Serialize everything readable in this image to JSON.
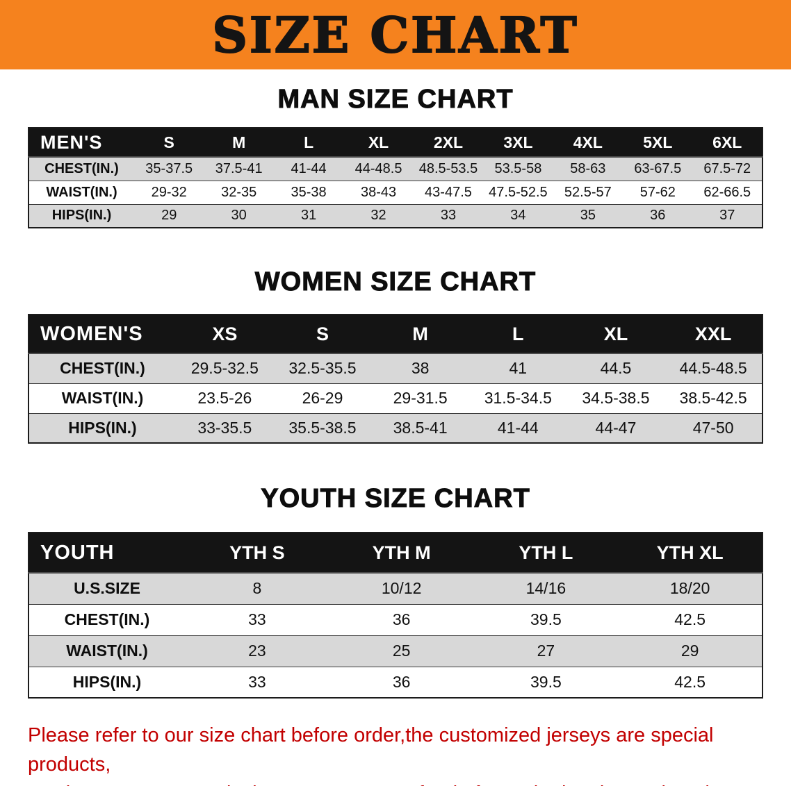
{
  "banner": {
    "title": "SIZE CHART"
  },
  "colors": {
    "banner_bg": "#F5821E",
    "table_header_bg": "#141414",
    "row_alt_bg": "#D8D8D8",
    "note_text": "#C20000"
  },
  "men": {
    "heading": "MAN SIZE CHART",
    "header": {
      "label": "MEN'S",
      "sizes": [
        "S",
        "M",
        "L",
        "XL",
        "2XL",
        "3XL",
        "4XL",
        "5XL",
        "6XL"
      ]
    },
    "rows": [
      {
        "label": "CHEST(IN.)",
        "values": [
          "35-37.5",
          "37.5-41",
          "41-44",
          "44-48.5",
          "48.5-53.5",
          "53.5-58",
          "58-63",
          "63-67.5",
          "67.5-72"
        ]
      },
      {
        "label": "WAIST(IN.)",
        "values": [
          "29-32",
          "32-35",
          "35-38",
          "38-43",
          "43-47.5",
          "47.5-52.5",
          "52.5-57",
          "57-62",
          "62-66.5"
        ]
      },
      {
        "label": "HIPS(IN.)",
        "values": [
          "29",
          "30",
          "31",
          "32",
          "33",
          "34",
          "35",
          "36",
          "37"
        ]
      }
    ]
  },
  "women": {
    "heading": "WOMEN SIZE CHART",
    "header": {
      "label": "WOMEN'S",
      "sizes": [
        "XS",
        "S",
        "M",
        "L",
        "XL",
        "XXL"
      ]
    },
    "rows": [
      {
        "label": "CHEST(IN.)",
        "values": [
          "29.5-32.5",
          "32.5-35.5",
          "38",
          "41",
          "44.5",
          "44.5-48.5"
        ]
      },
      {
        "label": "WAIST(IN.)",
        "values": [
          "23.5-26",
          "26-29",
          "29-31.5",
          "31.5-34.5",
          "34.5-38.5",
          "38.5-42.5"
        ]
      },
      {
        "label": "HIPS(IN.)",
        "values": [
          "33-35.5",
          "35.5-38.5",
          "38.5-41",
          "41-44",
          "44-47",
          "47-50"
        ]
      }
    ]
  },
  "youth": {
    "heading": "YOUTH SIZE CHART",
    "header": {
      "label": "YOUTH",
      "sizes": [
        "YTH S",
        "YTH M",
        "YTH L",
        "YTH XL"
      ]
    },
    "rows": [
      {
        "label": "U.S.SIZE",
        "values": [
          "8",
          "10/12",
          "14/16",
          "18/20"
        ]
      },
      {
        "label": "CHEST(IN.)",
        "values": [
          "33",
          "36",
          "39.5",
          "42.5"
        ]
      },
      {
        "label": "WAIST(IN.)",
        "values": [
          "23",
          "25",
          "27",
          "29"
        ]
      },
      {
        "label": "HIPS(IN.)",
        "values": [
          "33",
          "36",
          "39.5",
          "42.5"
        ]
      }
    ]
  },
  "note": {
    "line1": "Please refer to our size chart before order,the customized jerseys are special products,",
    "line2": "we don't accept cancel, change, teturn or refund after order has been placed!"
  }
}
